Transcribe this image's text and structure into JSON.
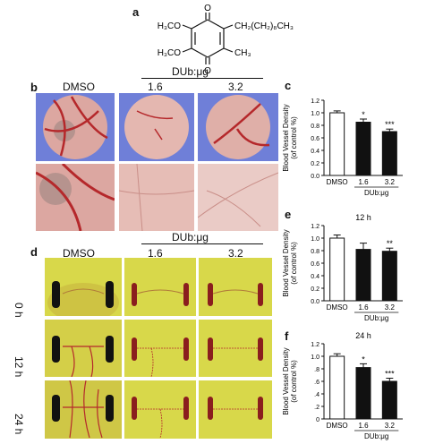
{
  "colors": {
    "dish_blue": "#6f7fd8",
    "tissue": "#dca7a1",
    "vessel": "#b5282b",
    "egg_yellow": "#d8d84a",
    "bar_black": "#111111",
    "bar_white": "#ffffff"
  },
  "panel_a": {
    "label": "a",
    "molecule": {
      "top_o": "O",
      "bottom_o": "O",
      "sub_tl": "H₃CO",
      "sub_bl": "H₃CO",
      "sub_tr": "CH₂(CH₂)₈CH₃",
      "sub_br": "CH₃"
    }
  },
  "panel_b": {
    "label": "b",
    "group_label": "DUb:μg",
    "headers": [
      "DMSO",
      "1.6",
      "3.2"
    ]
  },
  "panel_d": {
    "label": "d",
    "group_label": "DUb:μg",
    "headers": [
      "DMSO",
      "1.6",
      "3.2"
    ],
    "rows": [
      "0 h",
      "12 h",
      "24 h"
    ]
  },
  "chart_data": [
    {
      "panel": "c",
      "type": "bar",
      "title": "",
      "ylabel": "Blood Vessel Density\n(of control %)",
      "xlabel": "DUb:μg",
      "categories": [
        "DMSO",
        "1.6",
        "3.2"
      ],
      "values": [
        1.0,
        0.85,
        0.7
      ],
      "errors": [
        0.03,
        0.05,
        0.04
      ],
      "significance": [
        "",
        "*",
        "***"
      ],
      "ylim": [
        0,
        1.2
      ],
      "yticks": [
        "0.0",
        "0.2",
        "0.4",
        "0.6",
        "0.8",
        "1.0",
        "1.2"
      ],
      "grid": false
    },
    {
      "panel": "e",
      "type": "bar",
      "title": "12 h",
      "ylabel": "Blood Vessel Density\n(of control %)",
      "xlabel": "DUb:μg",
      "categories": [
        "DMSO",
        "1.6",
        "3.2"
      ],
      "values": [
        1.0,
        0.82,
        0.79
      ],
      "errors": [
        0.05,
        0.1,
        0.05
      ],
      "significance": [
        "",
        "",
        "**"
      ],
      "ylim": [
        0,
        1.2
      ],
      "yticks": [
        "0.0",
        "0.2",
        "0.4",
        "0.6",
        "0.8",
        "1.0",
        "1.2"
      ],
      "grid": false
    },
    {
      "panel": "f",
      "type": "bar",
      "title": "24 h",
      "ylabel": "Blood Vessel Density\n(of control %)",
      "xlabel": "DUb:μg",
      "categories": [
        "DMSO",
        "1.6",
        "3.2"
      ],
      "values": [
        1.0,
        0.82,
        0.6
      ],
      "errors": [
        0.04,
        0.06,
        0.05
      ],
      "significance": [
        "",
        "*",
        "***"
      ],
      "ylim": [
        0,
        1.2
      ],
      "yticks": [
        "0",
        ".2",
        ".4",
        ".6",
        ".8",
        "1.0",
        "1.2"
      ],
      "grid": false
    }
  ]
}
